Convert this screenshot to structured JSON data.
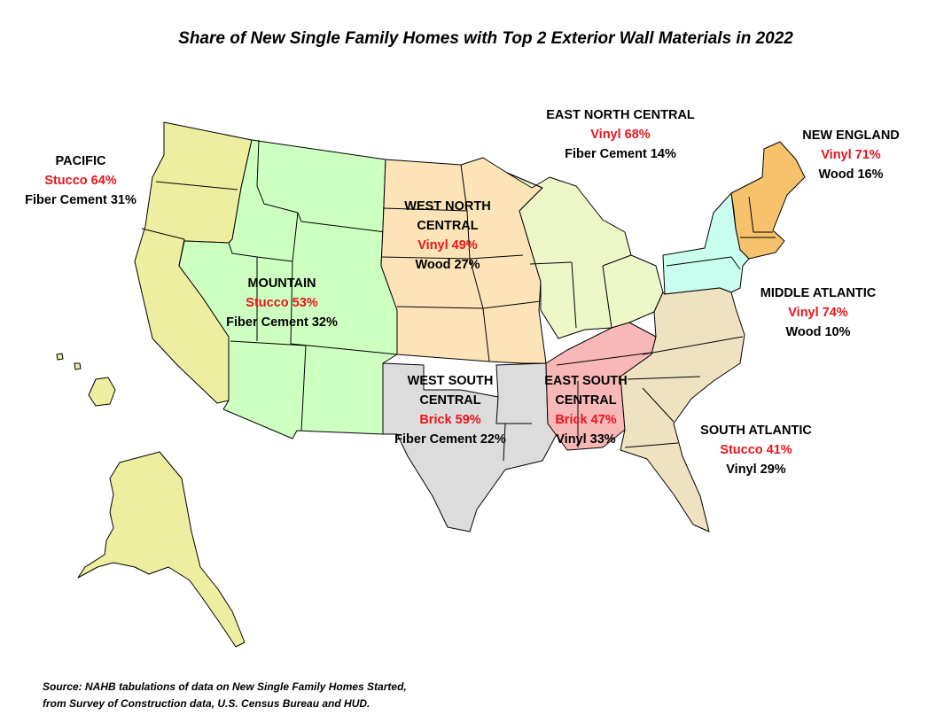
{
  "title": "Share of New Single Family Homes with Top 2 Exterior Wall Materials in 2022",
  "colors": {
    "pacific": "#eeeea0",
    "mountain": "#ccffc0",
    "west_north_central": "#fde4b8",
    "east_north_central": "#ecf6c6",
    "new_england": "#f6c36c",
    "middle_atlantic": "#c8ffee",
    "west_south_central": "#dcdcdc",
    "east_south_central": "#f8b8b8",
    "south_atlantic": "#efe2c0",
    "primary_text": "#e8141b",
    "secondary_text": "#000000"
  },
  "regions": {
    "pacific": {
      "name": "PACIFIC",
      "primary": "Stucco 64%",
      "secondary": "Fiber Cement 31%"
    },
    "mountain": {
      "name": "MOUNTAIN",
      "primary": "Stucco 53%",
      "secondary": "Fiber Cement 32%"
    },
    "west_north_central": {
      "name_1": "WEST NORTH",
      "name_2": "CENTRAL",
      "primary": "Vinyl 49%",
      "secondary": "Wood 27%"
    },
    "east_north_central": {
      "name": "EAST NORTH CENTRAL",
      "primary": "Vinyl 68%",
      "secondary": "Fiber Cement 14%"
    },
    "new_england": {
      "name": "NEW ENGLAND",
      "primary": "Vinyl 71%",
      "secondary": "Wood 16%"
    },
    "middle_atlantic": {
      "name": "MIDDLE ATLANTIC",
      "primary": "Vinyl 74%",
      "secondary": "Wood 10%"
    },
    "west_south_central": {
      "name_1": "WEST SOUTH",
      "name_2": "CENTRAL",
      "primary": "Brick 59%",
      "secondary": "Fiber Cement 22%"
    },
    "east_south_central": {
      "name_1": "EAST SOUTH",
      "name_2": "CENTRAL",
      "primary": "Brick 47%",
      "secondary": "Vinyl 33%"
    },
    "south_atlantic": {
      "name": "SOUTH ATLANTIC",
      "primary": "Stucco 41%",
      "secondary": "Vinyl 29%"
    }
  },
  "source": {
    "line1": "Source: NAHB tabulations of data on New Single Family Homes Started,",
    "line2": "from Survey of Construction data, U.S. Census Bureau and HUD."
  }
}
